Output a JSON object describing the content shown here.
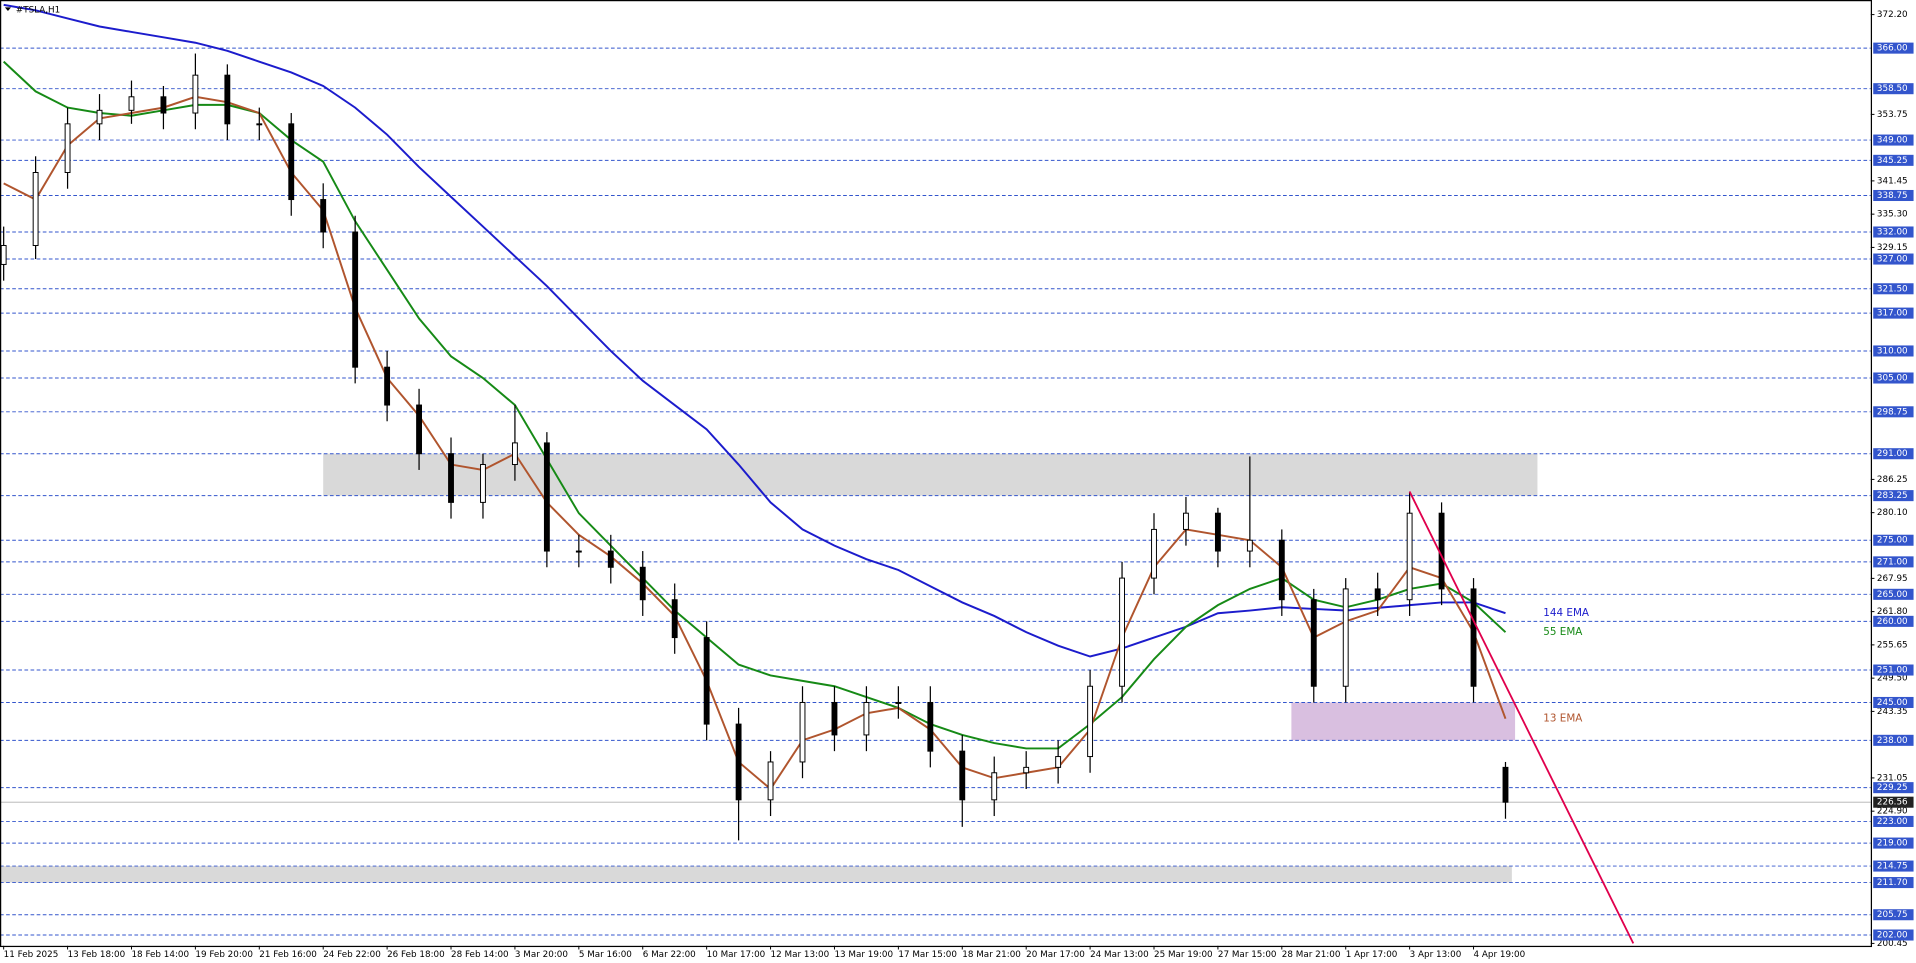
{
  "chart_data": {
    "type": "candlestick",
    "title": "#TSLA,H1",
    "categories": [
      "11 Feb 2025",
      null,
      "13 Feb 18:00",
      null,
      "18 Feb 14:00",
      null,
      "19 Feb 20:00",
      null,
      "21 Feb 16:00",
      null,
      "24 Feb 22:00",
      null,
      "26 Feb 18:00",
      null,
      "28 Feb 14:00",
      null,
      "3 Mar 20:00",
      null,
      "5 Mar 16:00",
      null,
      "6 Mar 22:00",
      null,
      "10 Mar 17:00",
      null,
      "12 Mar 13:00",
      null,
      "13 Mar 19:00",
      null,
      "17 Mar 15:00",
      null,
      "18 Mar 21:00",
      null,
      "20 Mar 17:00",
      null,
      "24 Mar 13:00",
      null,
      "25 Mar 19:00",
      null,
      "27 Mar 15:00",
      null,
      "28 Mar 21:00",
      null,
      "1 Apr 17:00",
      null,
      "3 Apr 13:00",
      null,
      "4 Apr 19:00",
      null
    ],
    "open": [
      326,
      329.5,
      343,
      352,
      354.5,
      357,
      354,
      361,
      352,
      352,
      338,
      332,
      307,
      300,
      291,
      282,
      289,
      293,
      273,
      273,
      270,
      264,
      257,
      241,
      227,
      234,
      245,
      239,
      245,
      245,
      236,
      227,
      232,
      233,
      235,
      248,
      268,
      277,
      280,
      273,
      275,
      264,
      248,
      266,
      264,
      280,
      266,
      233
    ],
    "high": [
      333,
      346,
      355,
      357.5,
      360,
      359,
      365,
      363,
      355,
      354,
      341,
      335,
      310,
      303,
      294,
      291,
      300,
      295,
      276,
      276,
      273,
      267,
      260,
      244,
      236,
      248,
      248,
      248,
      248,
      248,
      239,
      235,
      236,
      238,
      251,
      271,
      280,
      283,
      281,
      290.5,
      277,
      266,
      268,
      269,
      284,
      282,
      268,
      234
    ],
    "low": [
      323,
      327,
      340,
      349,
      352,
      351,
      351,
      349,
      349,
      335,
      329,
      304,
      297,
      288,
      279,
      279,
      286,
      270,
      270,
      267,
      261,
      254,
      238,
      219.5,
      224,
      231,
      236,
      236,
      242,
      233,
      222,
      224,
      229,
      230,
      232,
      245,
      265,
      274,
      270,
      270,
      261,
      245,
      245,
      261,
      261,
      263,
      245,
      223.5
    ],
    "close": [
      329.5,
      343,
      352,
      354.5,
      357,
      354,
      361,
      352,
      352,
      338,
      332,
      307,
      300,
      291,
      282,
      289,
      293,
      273,
      273,
      270,
      264,
      257,
      241,
      227,
      234,
      245,
      239,
      245,
      245,
      236,
      227,
      232,
      233,
      235,
      248,
      268,
      277,
      280,
      273,
      275,
      264,
      248,
      266,
      264,
      280,
      266,
      248,
      226.56
    ],
    "candle_color": "#000000",
    "series": [
      {
        "name": "144 EMA",
        "color": "#1c1ccc",
        "values": [
          374,
          373,
          371.5,
          370,
          369,
          368,
          367,
          365.5,
          363.5,
          361.5,
          359,
          355,
          350,
          344,
          338.5,
          333,
          327.5,
          322,
          316,
          310,
          304.5,
          300,
          295.5,
          289,
          282,
          277,
          274,
          271.5,
          269.5,
          266.5,
          263.5,
          261,
          258,
          255.5,
          253.5,
          255,
          257,
          259,
          261.5,
          262,
          262.6,
          262.3,
          262,
          262.5,
          263,
          263.5,
          263.5,
          261.5
        ]
      },
      {
        "name": "55 EMA",
        "color": "#168a16",
        "values": [
          363.5,
          358,
          355,
          354,
          353.5,
          354.5,
          355.5,
          355.5,
          354,
          349,
          345,
          334,
          325,
          316,
          309,
          305,
          300,
          290,
          280,
          274,
          268,
          262,
          257,
          252,
          250,
          249,
          248,
          246,
          244,
          241,
          239,
          237.5,
          236.5,
          236.5,
          241,
          246,
          253,
          259,
          263,
          266,
          268,
          264,
          262.6,
          264,
          266,
          267,
          263.5,
          258
        ]
      },
      {
        "name": "13 EMA",
        "color": "#b0552e",
        "values": [
          341,
          338,
          348,
          353,
          354,
          355,
          357,
          356,
          354,
          343,
          336,
          318,
          305,
          298,
          289,
          288,
          291,
          282,
          276,
          272,
          267,
          261,
          249,
          234,
          229,
          238,
          240,
          243,
          244,
          240,
          233,
          231,
          232,
          233,
          240,
          257,
          270,
          277,
          276,
          275,
          270,
          257,
          260,
          262,
          270,
          268,
          258,
          242
        ]
      }
    ],
    "ylim": [
      200,
      374.9
    ],
    "yticks": [
      {
        "value": 372.2,
        "label": "372.20"
      },
      353.75,
      341.45,
      {
        "value": 335.3,
        "label": "335.30"
      },
      329.15,
      286.25,
      {
        "value": 280.1,
        "label": "280.10"
      },
      267.95,
      {
        "value": 261.8,
        "label": "261.80"
      },
      255.65,
      {
        "value": 249.5,
        "label": "249.50"
      },
      243.35,
      231.05,
      {
        "value": 224.9,
        "label": "224.90"
      },
      200.45
    ],
    "levels": [
      {
        "value": 366,
        "label": "366.00"
      },
      {
        "value": 358.5,
        "label": "358.50"
      },
      {
        "value": 349,
        "label": "349.00"
      },
      {
        "value": 345.25,
        "label": "345.25"
      },
      {
        "value": 338.75,
        "label": "338.75"
      },
      {
        "value": 332,
        "label": "332.00"
      },
      {
        "value": 327,
        "label": "327.00"
      },
      {
        "value": 321.5,
        "label": "321.50"
      },
      {
        "value": 317,
        "label": "317.00"
      },
      {
        "value": 310,
        "label": "310.00"
      },
      {
        "value": 305,
        "label": "305.00"
      },
      {
        "value": 298.75,
        "label": "298.75"
      },
      {
        "value": 291,
        "label": "291.00"
      },
      {
        "value": 283.25,
        "label": "283.25"
      },
      {
        "value": 275,
        "label": "275.00"
      },
      {
        "value": 271,
        "label": "271.00"
      },
      {
        "value": 265,
        "label": "265.00"
      },
      {
        "value": 260,
        "label": "260.00"
      },
      {
        "value": 251,
        "label": "251.00"
      },
      {
        "value": 245,
        "label": "245.00"
      },
      {
        "value": 238,
        "label": "238.00"
      },
      {
        "value": 229.25,
        "label": "229.25"
      },
      {
        "value": 223,
        "label": "223.00"
      },
      {
        "value": 219,
        "label": "219.00"
      },
      {
        "value": 214.75,
        "label": "214.75"
      },
      {
        "value": 211.7,
        "label": "211.70"
      },
      {
        "value": 205.75,
        "label": "205.75"
      },
      {
        "value": 202,
        "label": "202.00"
      }
    ],
    "level_color": "#3355cc",
    "last_price": 226.56,
    "zones": [
      {
        "from": 283.25,
        "to": 291,
        "x": [
          10,
          48
        ],
        "color": "#d9d9d9"
      },
      {
        "from": 238,
        "to": 245,
        "x": [
          40.3,
          47.3
        ],
        "color": "#d9bfe0"
      },
      {
        "from": 211.7,
        "to": 214.75,
        "x": [
          -0.1,
          47.2
        ],
        "color": "#d9d9d9"
      }
    ],
    "trendline": {
      "x": [
        44,
        51
      ],
      "y": [
        284,
        200.45
      ],
      "color": "#e0004d"
    }
  }
}
